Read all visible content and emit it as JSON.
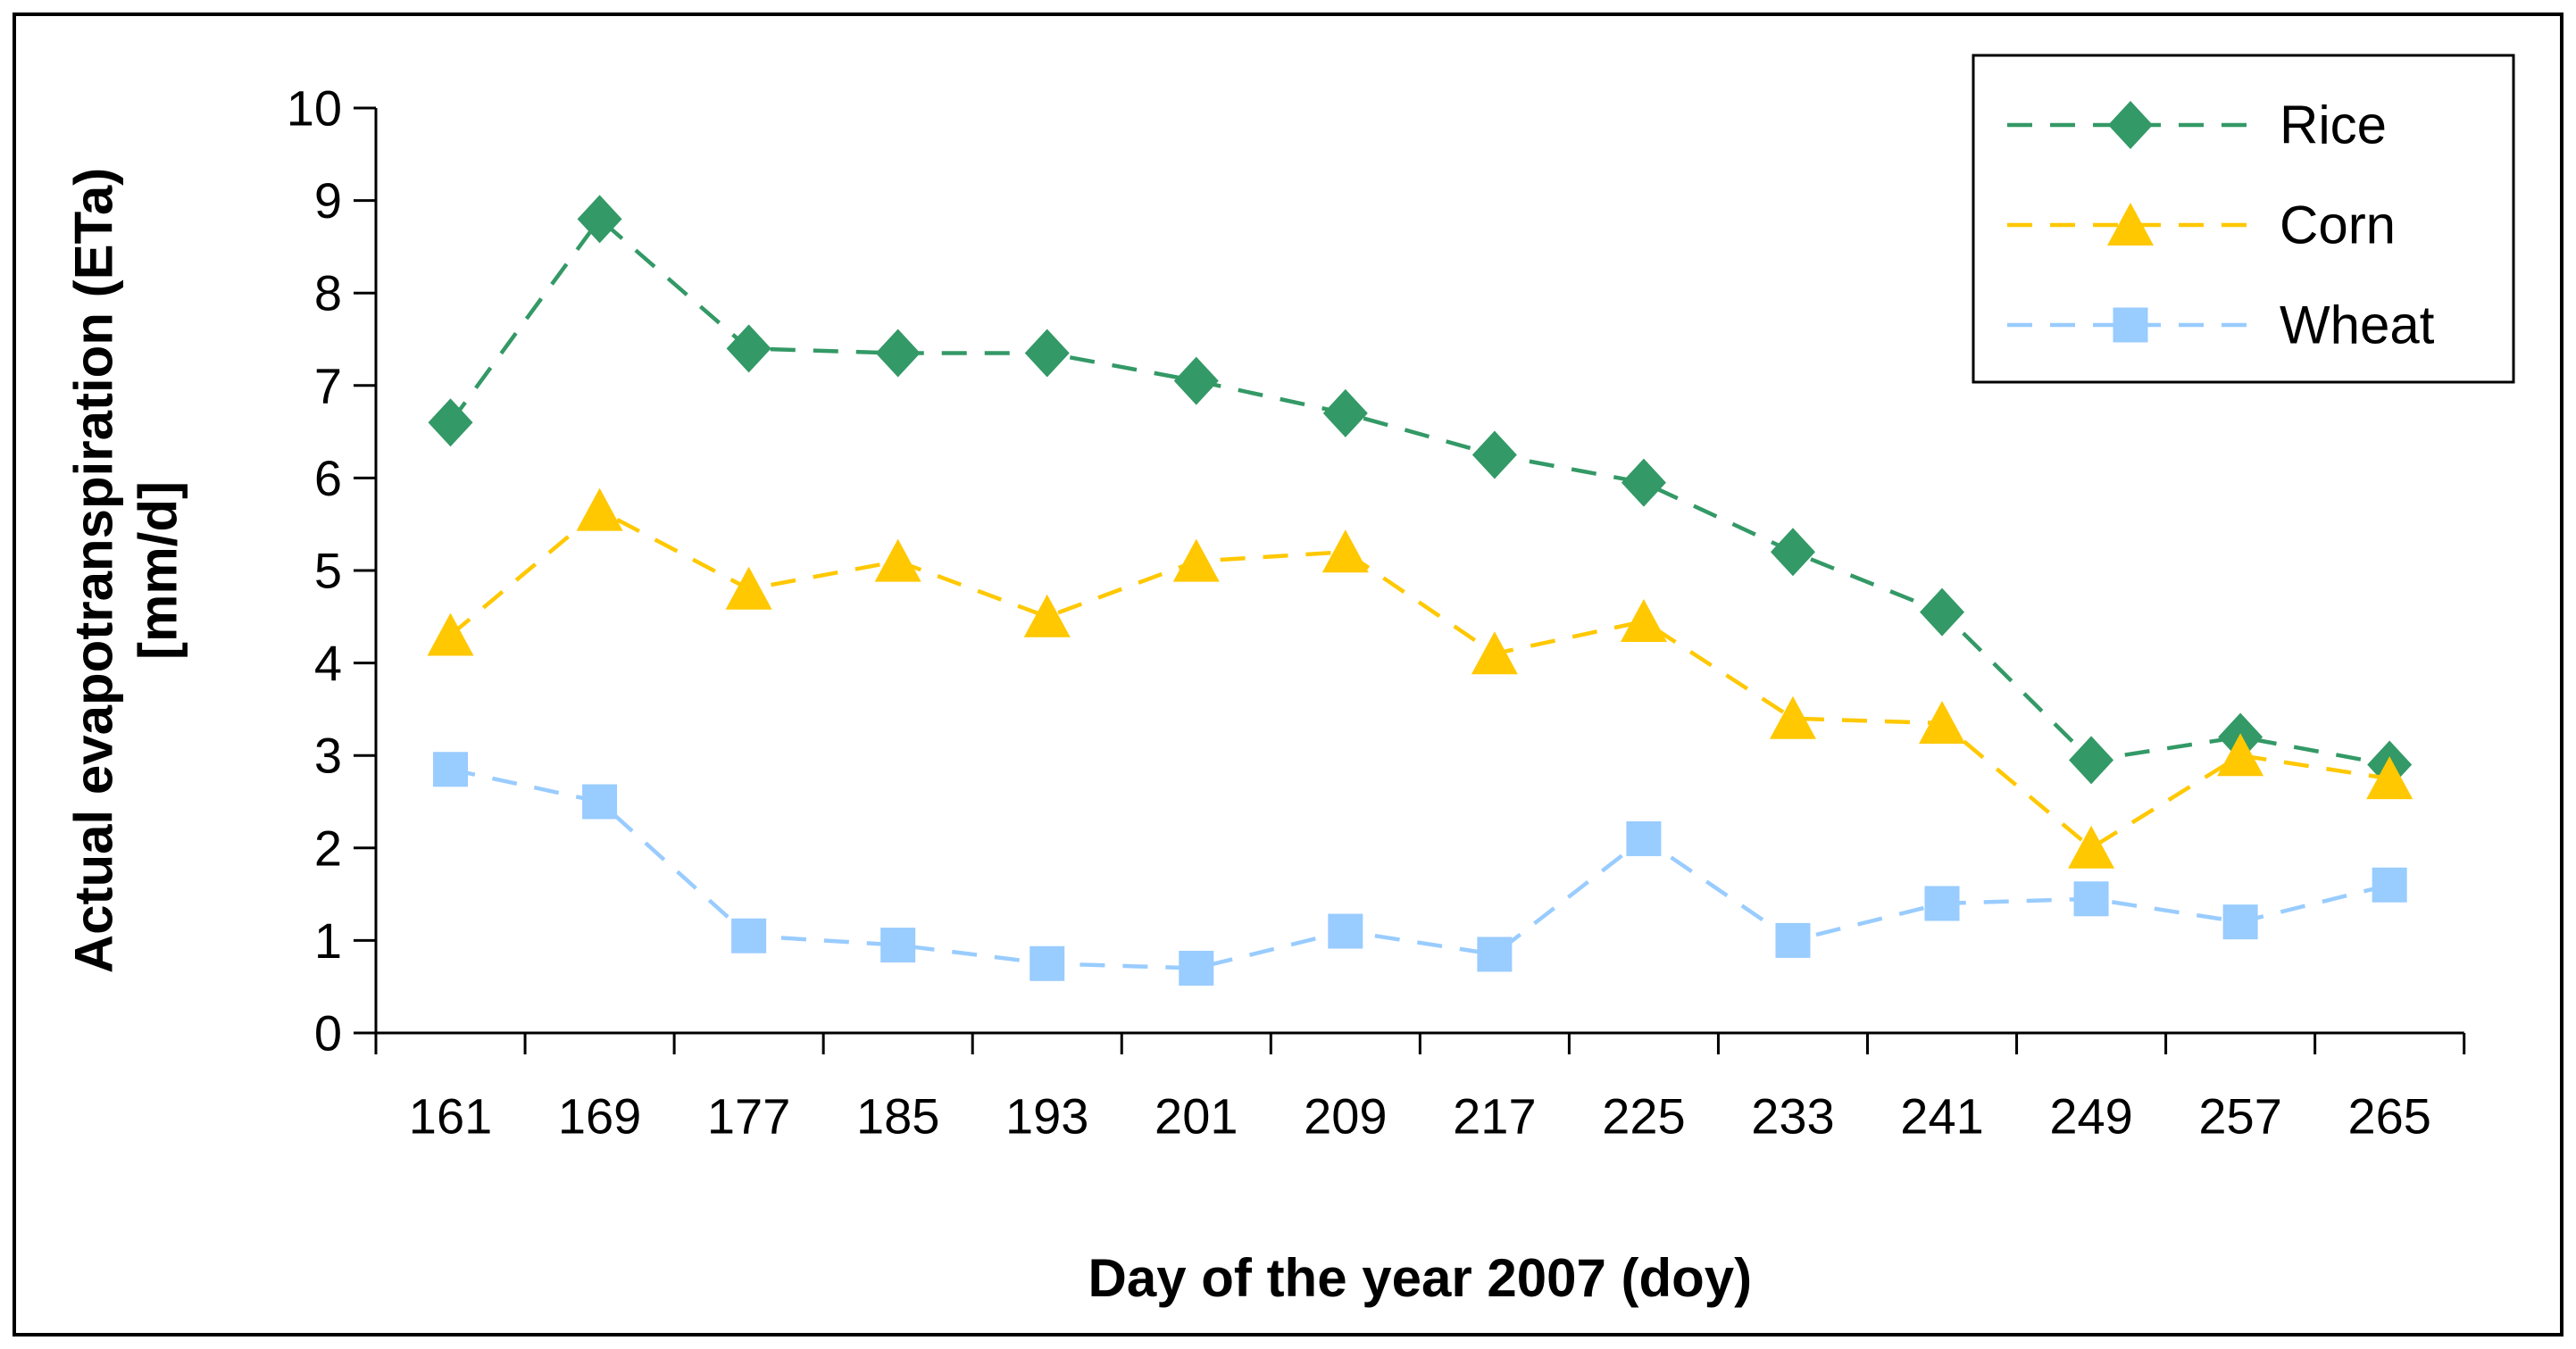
{
  "figure": {
    "background": "#ffffff",
    "border_color": "#000000"
  },
  "chart_data": {
    "type": "line",
    "title": "",
    "xlabel": "Day of the year 2007 (doy)",
    "ylabel_line1": "Actual evapotranspiration (ETa)",
    "ylabel_line2": "[mm/d]",
    "categories": [
      161,
      169,
      177,
      185,
      193,
      201,
      209,
      217,
      225,
      233,
      241,
      249,
      257,
      265
    ],
    "ylim": [
      0,
      10
    ],
    "ytick_step": 1,
    "grid": false,
    "legend_position": "top-right",
    "line_style": "dashed",
    "series": [
      {
        "name": "Rice",
        "color": "#339966",
        "marker": "diamond",
        "values": [
          6.6,
          8.8,
          7.4,
          7.35,
          7.35,
          7.05,
          6.7,
          6.25,
          5.95,
          5.2,
          4.55,
          2.95,
          3.2,
          2.9
        ]
      },
      {
        "name": "Corn",
        "color": "#FFC800",
        "marker": "triangle",
        "values": [
          4.3,
          5.65,
          4.8,
          5.1,
          4.5,
          5.1,
          5.2,
          4.1,
          4.45,
          3.4,
          3.35,
          2.0,
          3.0,
          2.75
        ]
      },
      {
        "name": "Wheat",
        "color": "#99CCFF",
        "marker": "square",
        "values": [
          2.85,
          2.5,
          1.05,
          0.95,
          0.75,
          0.7,
          1.1,
          0.85,
          2.1,
          1.0,
          1.4,
          1.45,
          1.2,
          1.6
        ]
      }
    ]
  }
}
